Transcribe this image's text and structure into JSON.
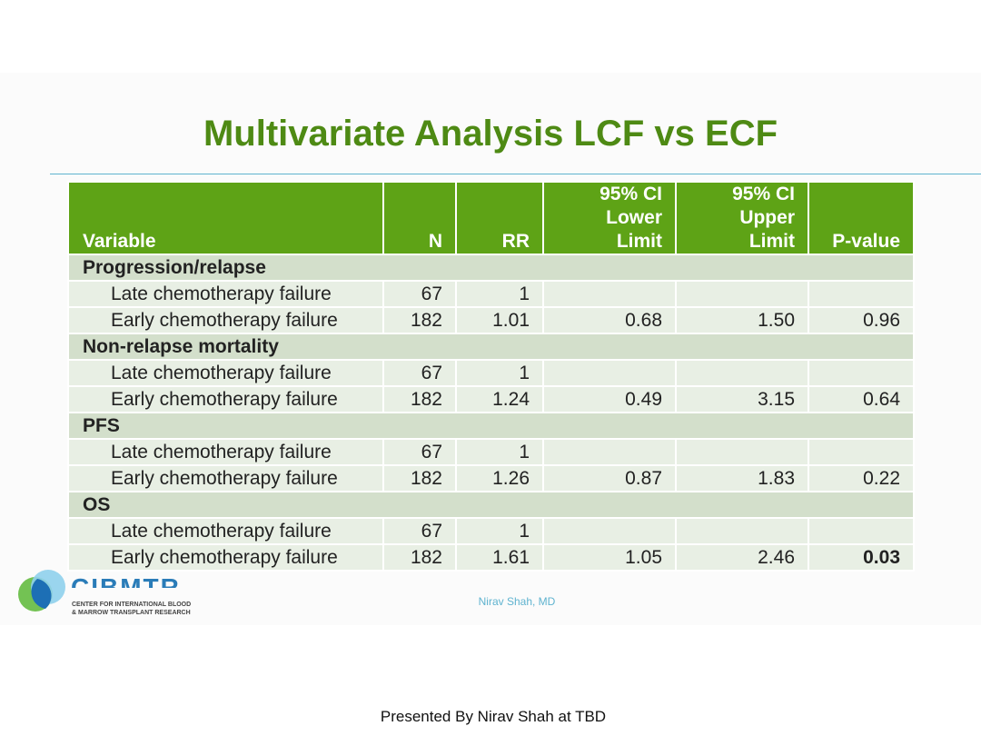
{
  "title": "Multivariate Analysis LCF vs ECF",
  "table": {
    "headers": {
      "variable": "Variable",
      "n": "N",
      "rr": "RR",
      "ci_lower": [
        "95% CI",
        "Lower",
        "Limit"
      ],
      "ci_upper": [
        "95% CI",
        "Upper",
        "Limit"
      ],
      "pvalue": "P-value"
    },
    "groups": [
      {
        "label": "Progression/relapse",
        "rows": [
          {
            "variable": "Late chemotherapy failure",
            "n": "67",
            "rr": "1",
            "lower": "",
            "upper": "",
            "p": "",
            "p_bold": false
          },
          {
            "variable": "Early chemotherapy failure",
            "n": "182",
            "rr": "1.01",
            "lower": "0.68",
            "upper": "1.50",
            "p": "0.96",
            "p_bold": false
          }
        ]
      },
      {
        "label": "Non-relapse mortality",
        "rows": [
          {
            "variable": "Late chemotherapy failure",
            "n": "67",
            "rr": "1",
            "lower": "",
            "upper": "",
            "p": "",
            "p_bold": false
          },
          {
            "variable": "Early chemotherapy failure",
            "n": "182",
            "rr": "1.24",
            "lower": "0.49",
            "upper": "3.15",
            "p": "0.64",
            "p_bold": false
          }
        ]
      },
      {
        "label": "PFS",
        "rows": [
          {
            "variable": "Late chemotherapy failure",
            "n": "67",
            "rr": "1",
            "lower": "",
            "upper": "",
            "p": "",
            "p_bold": false
          },
          {
            "variable": "Early chemotherapy failure",
            "n": "182",
            "rr": "1.26",
            "lower": "0.87",
            "upper": "1.83",
            "p": "0.22",
            "p_bold": false
          }
        ]
      },
      {
        "label": "OS",
        "rows": [
          {
            "variable": "Late chemotherapy failure",
            "n": "67",
            "rr": "1",
            "lower": "",
            "upper": "",
            "p": "",
            "p_bold": false
          },
          {
            "variable": "Early chemotherapy failure",
            "n": "182",
            "rr": "1.61",
            "lower": "1.05",
            "upper": "2.46",
            "p": "0.03",
            "p_bold": true
          }
        ]
      }
    ]
  },
  "logo": {
    "name": "CIBMTR",
    "subtitle_line1": "Center for International Blood",
    "subtitle_line2": "& Marrow Transplant Research"
  },
  "slide_presenter": "Nirav Shah, MD",
  "footer": "Presented By Nirav Shah at TBD",
  "colors": {
    "title": "#4e8a14",
    "header_bg": "#5ea316",
    "group_bg": "#d3dfcb",
    "row_bg": "#e8efe4",
    "rule": "#5fb3cf"
  }
}
